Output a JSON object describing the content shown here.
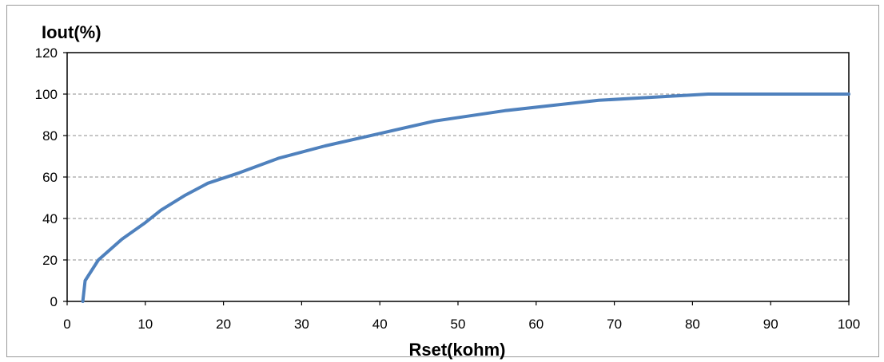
{
  "chart_data": {
    "type": "line",
    "title": "",
    "xlabel": "Rset(kohm)",
    "ylabel": "Iout(%)",
    "xlim": [
      0,
      100
    ],
    "ylim": [
      0,
      120
    ],
    "x_ticks": [
      "0",
      "10",
      "20",
      "30",
      "40",
      "50",
      "60",
      "70",
      "80",
      "90",
      "100"
    ],
    "y_ticks": [
      "0",
      "20",
      "40",
      "60",
      "80",
      "100",
      "120"
    ],
    "grid": "horizontal dashed",
    "legend": "none",
    "series": [
      {
        "color": "#4f81bd",
        "x": [
          2,
          2.3,
          4,
          7,
          10,
          12,
          15,
          18,
          22,
          27,
          33,
          40,
          47,
          56,
          62,
          68,
          75,
          82,
          90,
          100
        ],
        "y": [
          0,
          10,
          20,
          30,
          38,
          44,
          51,
          57,
          62,
          69,
          75,
          81,
          87,
          92,
          94.5,
          97,
          98.5,
          100,
          100,
          100
        ]
      }
    ]
  }
}
